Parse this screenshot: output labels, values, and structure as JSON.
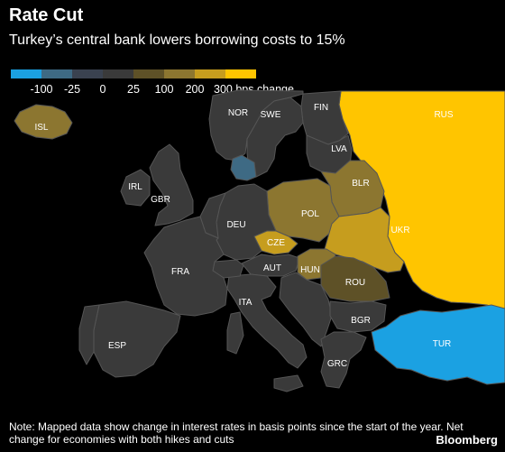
{
  "header": {
    "title": "Rate Cut",
    "subtitle": "Turkey’s central bank lowers borrowing costs to 15%"
  },
  "legend": {
    "colors": [
      "#1ba1e2",
      "#3e6a84",
      "#3a4250",
      "#3a3a3a",
      "#5e5127",
      "#8c7630",
      "#c69d1e",
      "#ffc500"
    ],
    "labels": [
      "-100",
      "-25",
      "0",
      "25",
      "100",
      "200",
      "300 bps change"
    ]
  },
  "map_colors": {
    "neutral": "#3a3a3a",
    "border": "#555555",
    "turkey": "#1ba1e2",
    "denmark": "#3e6a84",
    "iceland": "#8c7630",
    "poland": "#8c7630",
    "belarus": "#8c7630",
    "hungary": "#8c7630",
    "romania": "#5e5127",
    "czechia": "#c69d1e",
    "ukraine": "#c69d1e",
    "russia": "#ffc500"
  },
  "countries": [
    "ISL",
    "NOR",
    "SWE",
    "FIN",
    "RUS",
    "LVA",
    "BLR",
    "POL",
    "UKR",
    "IRL",
    "GBR",
    "DEU",
    "CZE",
    "FRA",
    "AUT",
    "HUN",
    "ROU",
    "ITA",
    "BGR",
    "ESP",
    "TUR",
    "GRC"
  ],
  "footer": {
    "note": "Note: Mapped data show change in interest rates in basis points since the start of the year. Net change for economies with both hikes and cuts",
    "brand": "Bloomberg"
  }
}
